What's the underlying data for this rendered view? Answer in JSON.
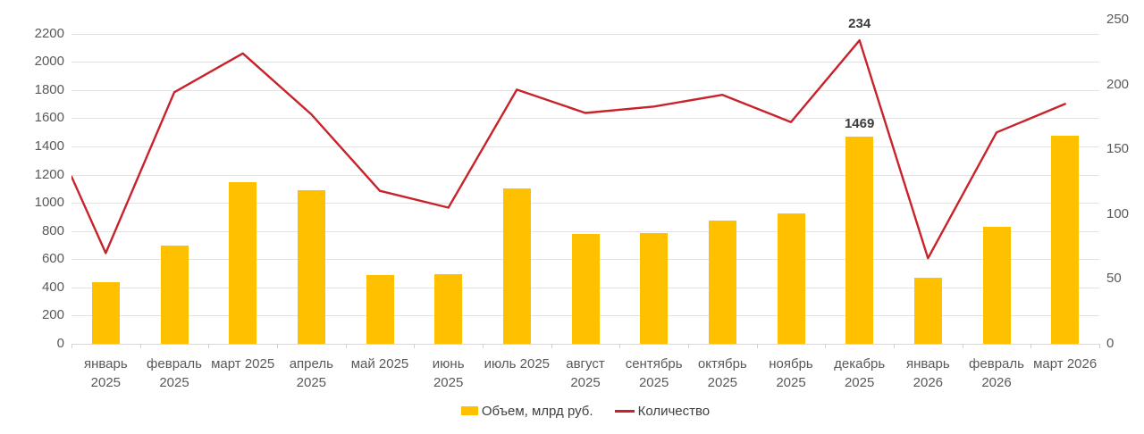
{
  "chart_data": {
    "type": "combo",
    "title": "",
    "categories": [
      [
        "январь",
        "2025"
      ],
      [
        "февраль",
        "2025"
      ],
      [
        "март 2025"
      ],
      [
        "апрель",
        "2025"
      ],
      [
        "май 2025"
      ],
      [
        "июнь",
        "2025"
      ],
      [
        "июль 2025"
      ],
      [
        "август",
        "2025"
      ],
      [
        "сентябрь",
        "2025"
      ],
      [
        "октябрь",
        "2025"
      ],
      [
        "ноябрь",
        "2025"
      ],
      [
        "декабрь",
        "2025"
      ],
      [
        "январь",
        "2026"
      ],
      [
        "февраль",
        "2026"
      ],
      [
        "март 2026"
      ]
    ],
    "series": [
      {
        "name": "Объем, млрд руб.",
        "type": "bar",
        "axis": "left",
        "color": "#FFC000",
        "values": [
          440,
          700,
          1145,
          1090,
          490,
          495,
          1100,
          780,
          785,
          875,
          925,
          1469,
          470,
          830,
          1475
        ],
        "data_labels": {
          "11": "1469"
        }
      },
      {
        "name": "Количество",
        "type": "line",
        "axis": "right",
        "color": "#C8222A",
        "values": [
          70,
          194,
          224,
          177,
          118,
          105,
          196,
          178,
          183,
          192,
          171,
          234,
          66,
          163,
          185
        ],
        "left_edge_value": 129,
        "data_labels": {
          "11": "234"
        }
      }
    ],
    "left_axis": {
      "min": 0,
      "max": 2200,
      "step": 200,
      "ticks": [
        0,
        200,
        400,
        600,
        800,
        1000,
        1200,
        1400,
        1600,
        1800,
        2000,
        2200
      ]
    },
    "right_axis": {
      "min": 0,
      "max": 250,
      "step": 50,
      "ticks": [
        0,
        50,
        100,
        150,
        200,
        250
      ]
    },
    "grid": "horizontal",
    "legend_position": "bottom"
  },
  "colors": {
    "bar": "#FFC000",
    "line": "#C8222A",
    "gridline": "#E2E2E2",
    "axis_line": "#D9D9D9",
    "axis_text": "#595959",
    "data_label": "#3B3B3B",
    "legend_text": "#404040",
    "background": "#FFFFFF"
  }
}
